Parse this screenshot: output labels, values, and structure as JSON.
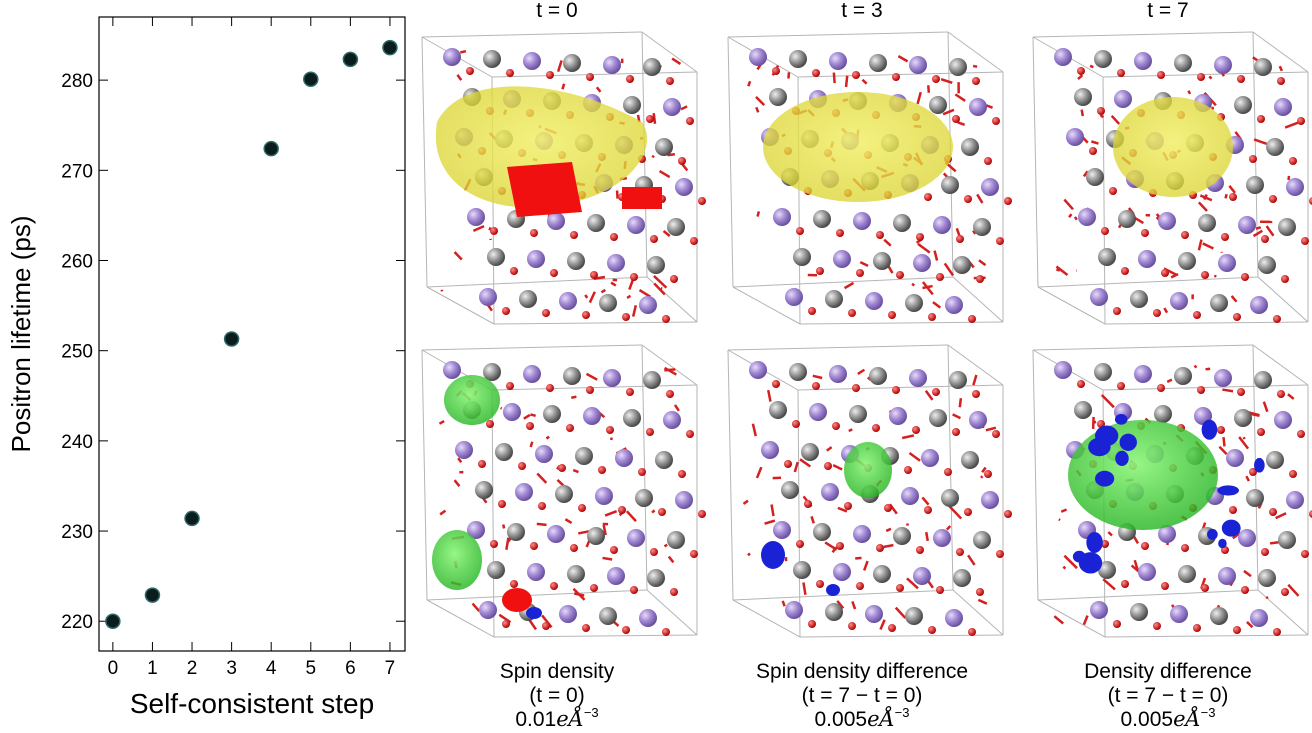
{
  "chart_data": {
    "type": "scatter",
    "x_label": "Self-consistent step",
    "y_label": "Positron lifetime (ps)",
    "x": [
      0,
      1,
      2,
      3,
      4,
      5,
      6,
      7
    ],
    "values": [
      220,
      222.9,
      231.4,
      251.3,
      272.4,
      280.1,
      282.3,
      283.6
    ],
    "color": "#0b1c1c",
    "xlim": [
      -0.35,
      7.38
    ],
    "xticks": [
      0,
      1,
      2,
      3,
      4,
      5,
      6,
      7
    ],
    "ylim": [
      216.7,
      287
    ],
    "yticks": [
      220,
      230,
      240,
      250,
      260,
      270,
      280
    ]
  },
  "panels": {
    "column_titles": [
      "t = 0",
      "t = 3",
      "t = 7"
    ],
    "captions": [
      {
        "line1": "Spin density",
        "line2": "(t = 0)",
        "number": "0.01",
        "unit": "eÅ",
        "exponent": "−3"
      },
      {
        "line1": "Spin density difference",
        "line2": "(t = 7 − t = 0)",
        "number": "0.005",
        "unit": "eÅ",
        "exponent": "−3"
      },
      {
        "line1": "Density difference",
        "line2": "(t = 7 − t = 0)",
        "number": "0.005",
        "unit": "eÅ",
        "exponent": "−3"
      }
    ]
  }
}
